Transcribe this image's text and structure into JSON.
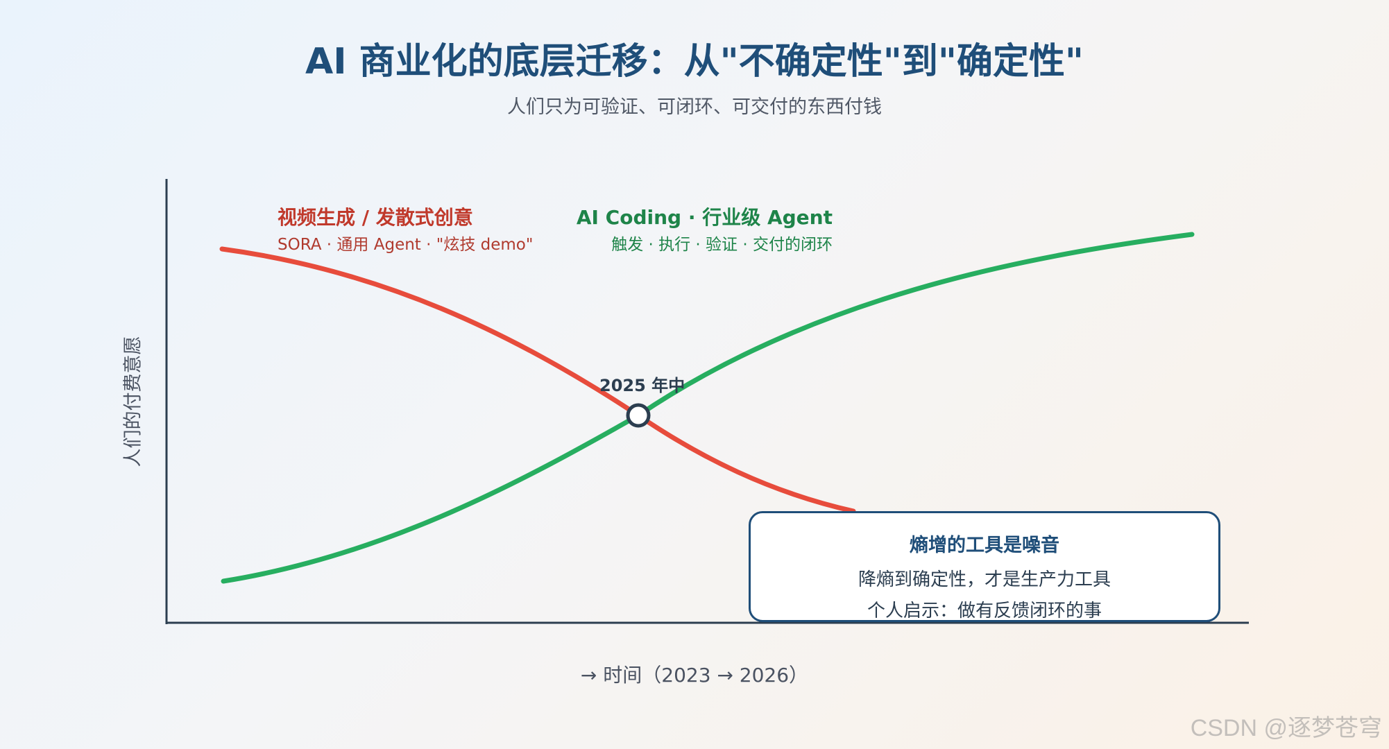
{
  "title": "AI 商业化的底层迁移：从\"不确定性\"到\"确定性\"",
  "subtitle": "人们只为可验证、可闭环、可交付的东西付钱",
  "axes": {
    "ylabel": "人们的付费意愿",
    "xlabel": "→ 时间（2023 → 2026）"
  },
  "curves": {
    "decline": {
      "title": "视频生成 / 发散式创意",
      "subtitle": "SORA · 通用 Agent · \"炫技 demo\"",
      "color": "#e74c3c"
    },
    "rise": {
      "title": "AI Coding · 行业级 Agent",
      "subtitle": "触发 · 执行 · 验证 · 交付的闭环",
      "color": "#27ae60"
    }
  },
  "crossover": {
    "label": "2025 年中"
  },
  "callout": {
    "title": "熵增的工具是噪音",
    "line1": "降熵到确定性，才是生产力工具",
    "line2": "个人启示：做有反馈闭环的事"
  },
  "watermark": "CSDN @逐梦苍穹"
}
